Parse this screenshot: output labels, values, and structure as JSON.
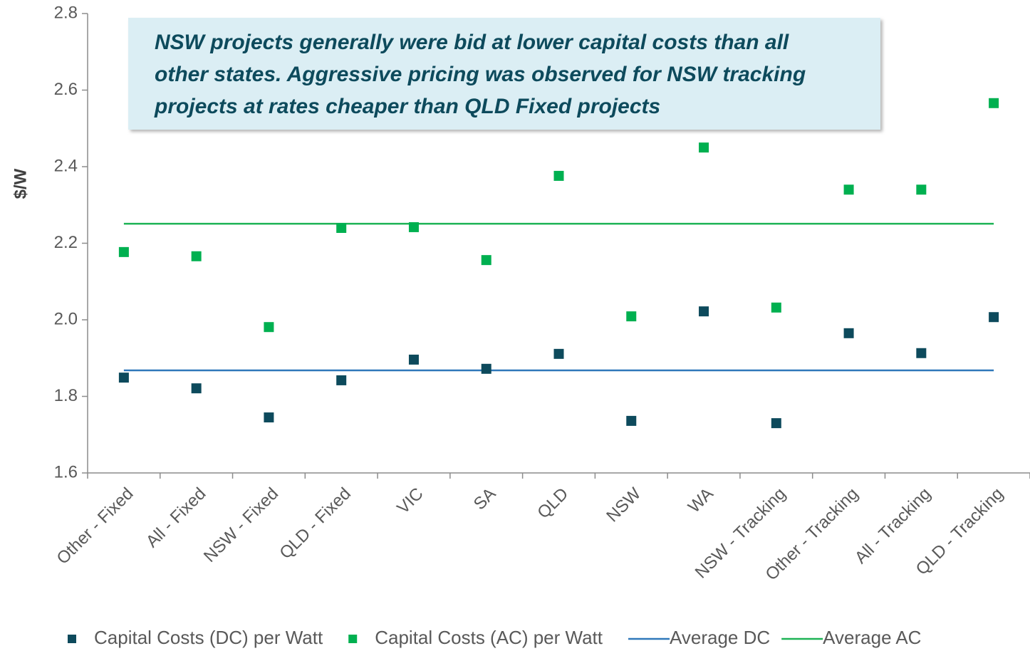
{
  "chart_data": {
    "type": "scatter",
    "y_label": "$/W",
    "annotation": [
      "NSW projects generally were bid at lower capital costs than all",
      "other states. Aggressive pricing was observed for NSW tracking",
      "projects at rates cheaper than QLD Fixed projects"
    ],
    "categories": [
      "Other - Fixed",
      "All - Fixed",
      "NSW - Fixed",
      "QLD - Fixed",
      "VIC",
      "SA",
      "QLD",
      "NSW",
      "WA",
      "NSW - Tracking",
      "Other - Tracking",
      "All - Tracking",
      "QLD - Tracking"
    ],
    "series": [
      {
        "name": "Capital Costs (DC) per Watt",
        "kind": "marker",
        "color": "#0d4a5c",
        "values": [
          1.849,
          1.821,
          1.745,
          1.842,
          1.896,
          1.872,
          1.911,
          1.736,
          2.022,
          1.73,
          1.965,
          1.913,
          2.007
        ]
      },
      {
        "name": "Capital Costs (AC) per Watt",
        "kind": "marker",
        "color": "#00b050",
        "values": [
          2.177,
          2.166,
          1.981,
          2.24,
          2.242,
          2.156,
          2.376,
          2.009,
          2.45,
          2.032,
          2.34,
          2.34,
          2.566
        ]
      },
      {
        "name": "Average DC",
        "kind": "line",
        "color": "#2f78ba",
        "values": [
          1.868,
          1.868,
          1.868,
          1.868,
          1.868,
          1.868,
          1.868,
          1.868,
          1.868,
          1.868,
          1.868,
          1.868,
          1.868
        ]
      },
      {
        "name": "Average AC",
        "kind": "line",
        "color": "#1db355",
        "values": [
          2.251,
          2.251,
          2.251,
          2.251,
          2.251,
          2.251,
          2.251,
          2.251,
          2.251,
          2.251,
          2.251,
          2.251,
          2.251
        ]
      }
    ],
    "ylim": [
      1.6,
      2.8
    ],
    "yticks": [
      1.6,
      1.8,
      {
        "value": 2,
        "label": "2.0"
      },
      2.2,
      2.4,
      2.6,
      2.8
    ],
    "legend": "bottom"
  }
}
